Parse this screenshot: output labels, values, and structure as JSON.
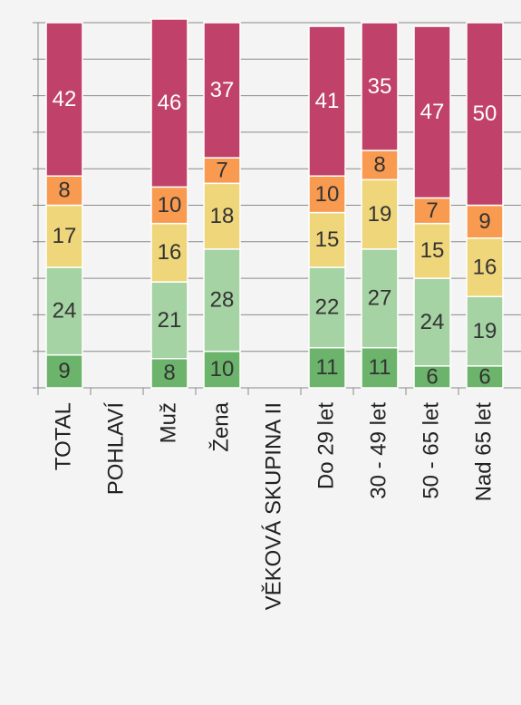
{
  "chart_data": {
    "type": "stacked_bar",
    "categories": [
      "TOTAL",
      "POHLAVÍ",
      "Muž",
      "Žena",
      "VĚKOVÁ SKUPINA II",
      "Do 29 let",
      "30 - 49 let",
      "50 - 65 let",
      "Nad 65 let"
    ],
    "series": [
      {
        "color": "#6cb36c",
        "values": [
          9,
          null,
          8,
          10,
          null,
          11,
          11,
          6,
          6
        ]
      },
      {
        "color": "#a5d3a3",
        "values": [
          24,
          null,
          21,
          28,
          null,
          22,
          27,
          24,
          19
        ]
      },
      {
        "color": "#efd67b",
        "values": [
          17,
          null,
          16,
          18,
          null,
          15,
          19,
          15,
          16
        ]
      },
      {
        "color": "#f89a50",
        "values": [
          8,
          null,
          10,
          7,
          null,
          10,
          8,
          7,
          9
        ]
      },
      {
        "color": "#c0426a",
        "values": [
          42,
          null,
          46,
          37,
          null,
          41,
          35,
          47,
          50
        ]
      }
    ],
    "ylim": [
      0,
      100
    ],
    "yticks": [
      0,
      10,
      20,
      30,
      40,
      50,
      60,
      70,
      80,
      90,
      100
    ],
    "grid": true
  }
}
